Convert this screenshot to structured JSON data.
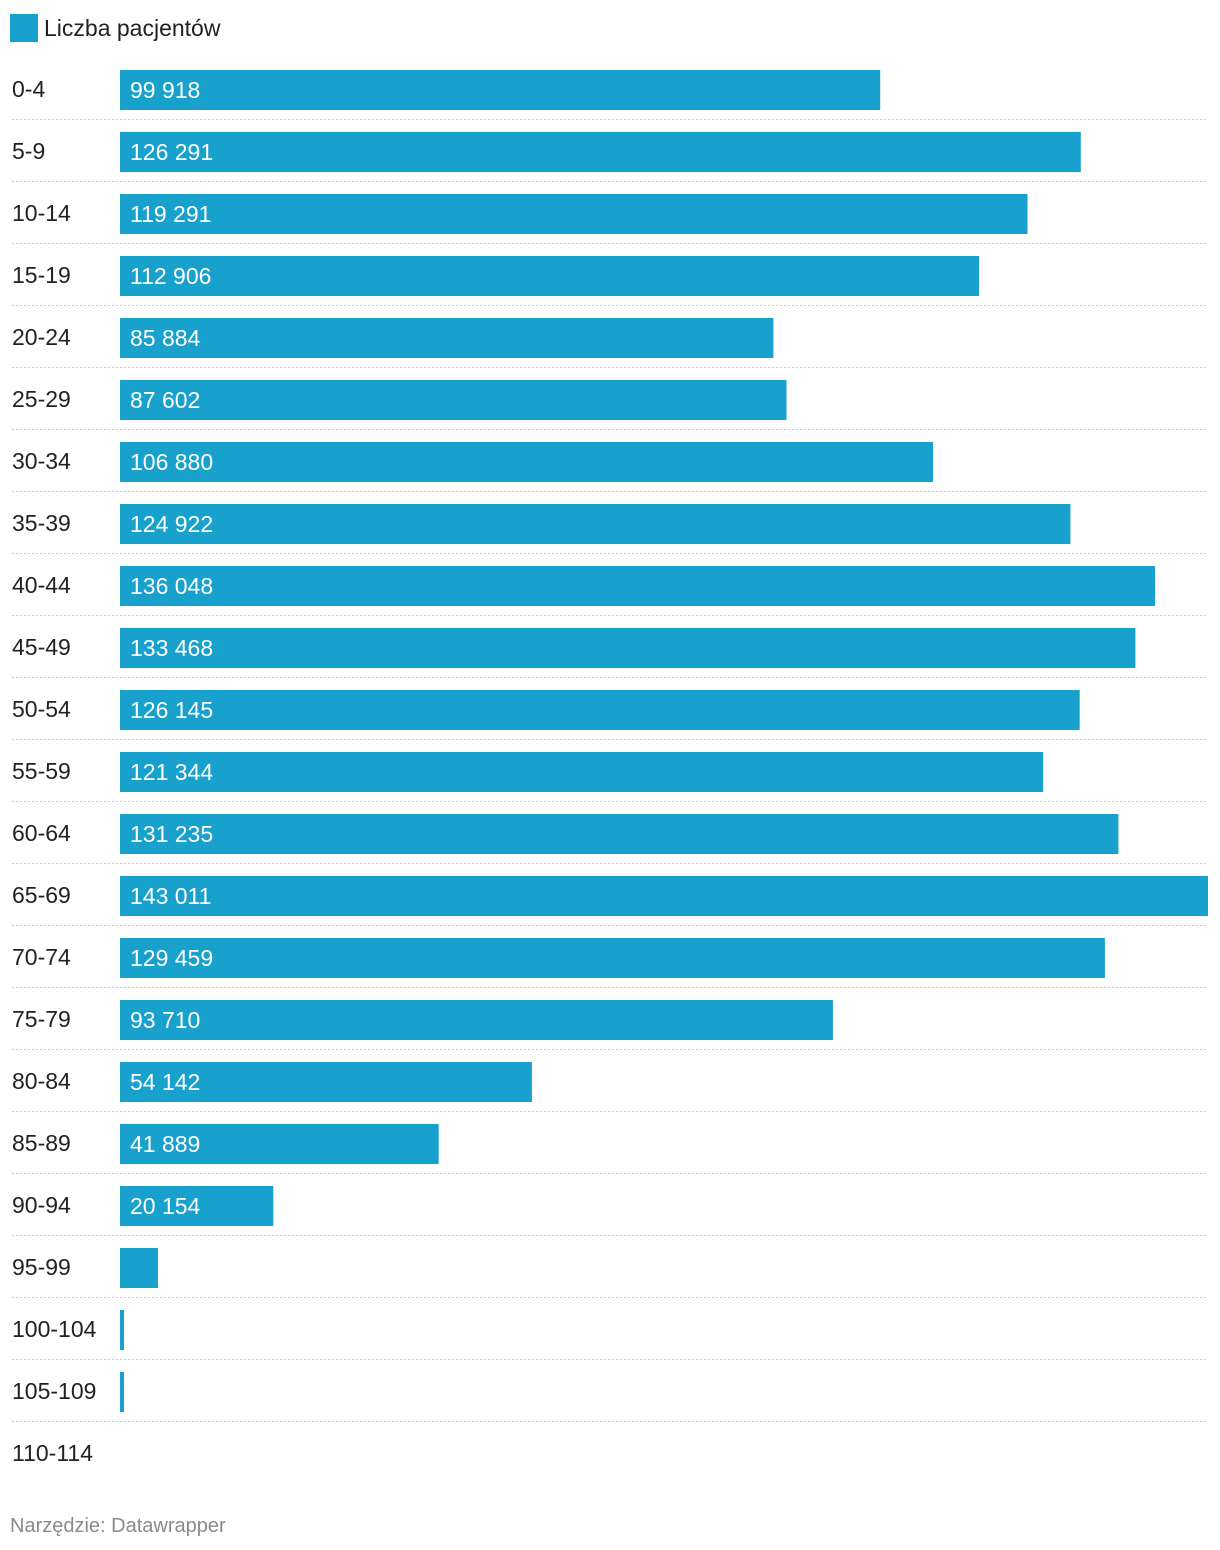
{
  "legend": {
    "label": "Liczba pacjentów",
    "color": "#18a1cd"
  },
  "footer": {
    "text": "Narzędzie: Datawrapper"
  },
  "chart_data": {
    "type": "bar",
    "orientation": "horizontal",
    "bar_color": "#18a1cd",
    "label_color": "#ffffff",
    "grid": "dotted row separators",
    "xlim": [
      0,
      143011
    ],
    "categories": [
      "0-4",
      "5-9",
      "10-14",
      "15-19",
      "20-24",
      "25-29",
      "30-34",
      "35-39",
      "40-44",
      "45-49",
      "50-54",
      "55-59",
      "60-64",
      "65-69",
      "70-74",
      "75-79",
      "80-84",
      "85-89",
      "90-94",
      "95-99",
      "100-104",
      "105-109",
      "110-114"
    ],
    "series": [
      {
        "name": "Liczba pacjentów",
        "values": [
          99918,
          126291,
          119291,
          112906,
          85884,
          87602,
          106880,
          124922,
          136048,
          133468,
          126145,
          121344,
          131235,
          143011,
          129459,
          93710,
          54142,
          41889,
          20154,
          5000,
          500,
          250,
          0
        ]
      }
    ],
    "data_labels": [
      "99 918",
      "126 291",
      "119 291",
      "112 906",
      "85 884",
      "87 602",
      "106 880",
      "124 922",
      "136 048",
      "133 468",
      "126 145",
      "121 344",
      "131 235",
      "143 011",
      "129 459",
      "93 710",
      "54 142",
      "41 889",
      "20 154",
      "",
      "",
      "",
      ""
    ]
  }
}
